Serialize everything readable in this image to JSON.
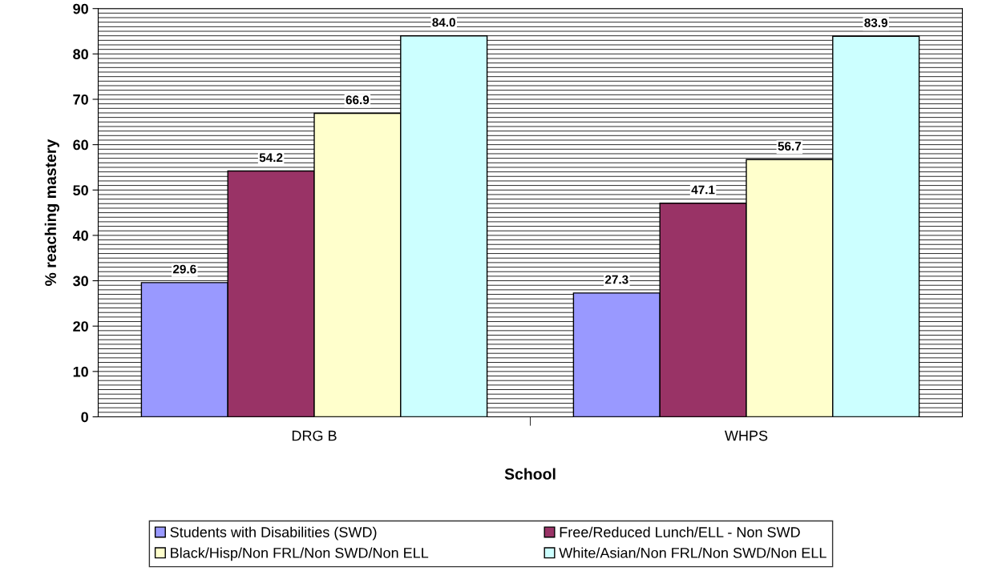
{
  "chart_data": {
    "type": "bar",
    "xlabel": "School",
    "ylabel": "% reaching mastery",
    "categories": [
      "DRG B",
      "WHPS"
    ],
    "series": [
      {
        "name": "Students with Disabilities (SWD)",
        "color": "#9999ff",
        "values": [
          29.6,
          27.3
        ]
      },
      {
        "name": "Free/Reduced Lunch/ELL - Non SWD",
        "color": "#993366",
        "values": [
          54.2,
          47.1
        ]
      },
      {
        "name": "Black/Hisp/Non FRL/Non SWD/Non ELL",
        "color": "#ffffcc",
        "values": [
          66.9,
          56.7
        ]
      },
      {
        "name": "White/Asian/Non FRL/Non SWD/Non ELL",
        "color": "#ccffff",
        "values": [
          84.0,
          83.9
        ]
      }
    ],
    "value_labels": [
      [
        "29.6",
        "27.3"
      ],
      [
        "54.2",
        "47.1"
      ],
      [
        "66.9",
        "56.7"
      ],
      [
        "84.0",
        "83.9"
      ]
    ],
    "ylim": [
      0,
      90
    ],
    "yticks": [
      0,
      10,
      20,
      30,
      40,
      50,
      60,
      70,
      80,
      90
    ],
    "grid": "y",
    "legend": "bottom"
  }
}
